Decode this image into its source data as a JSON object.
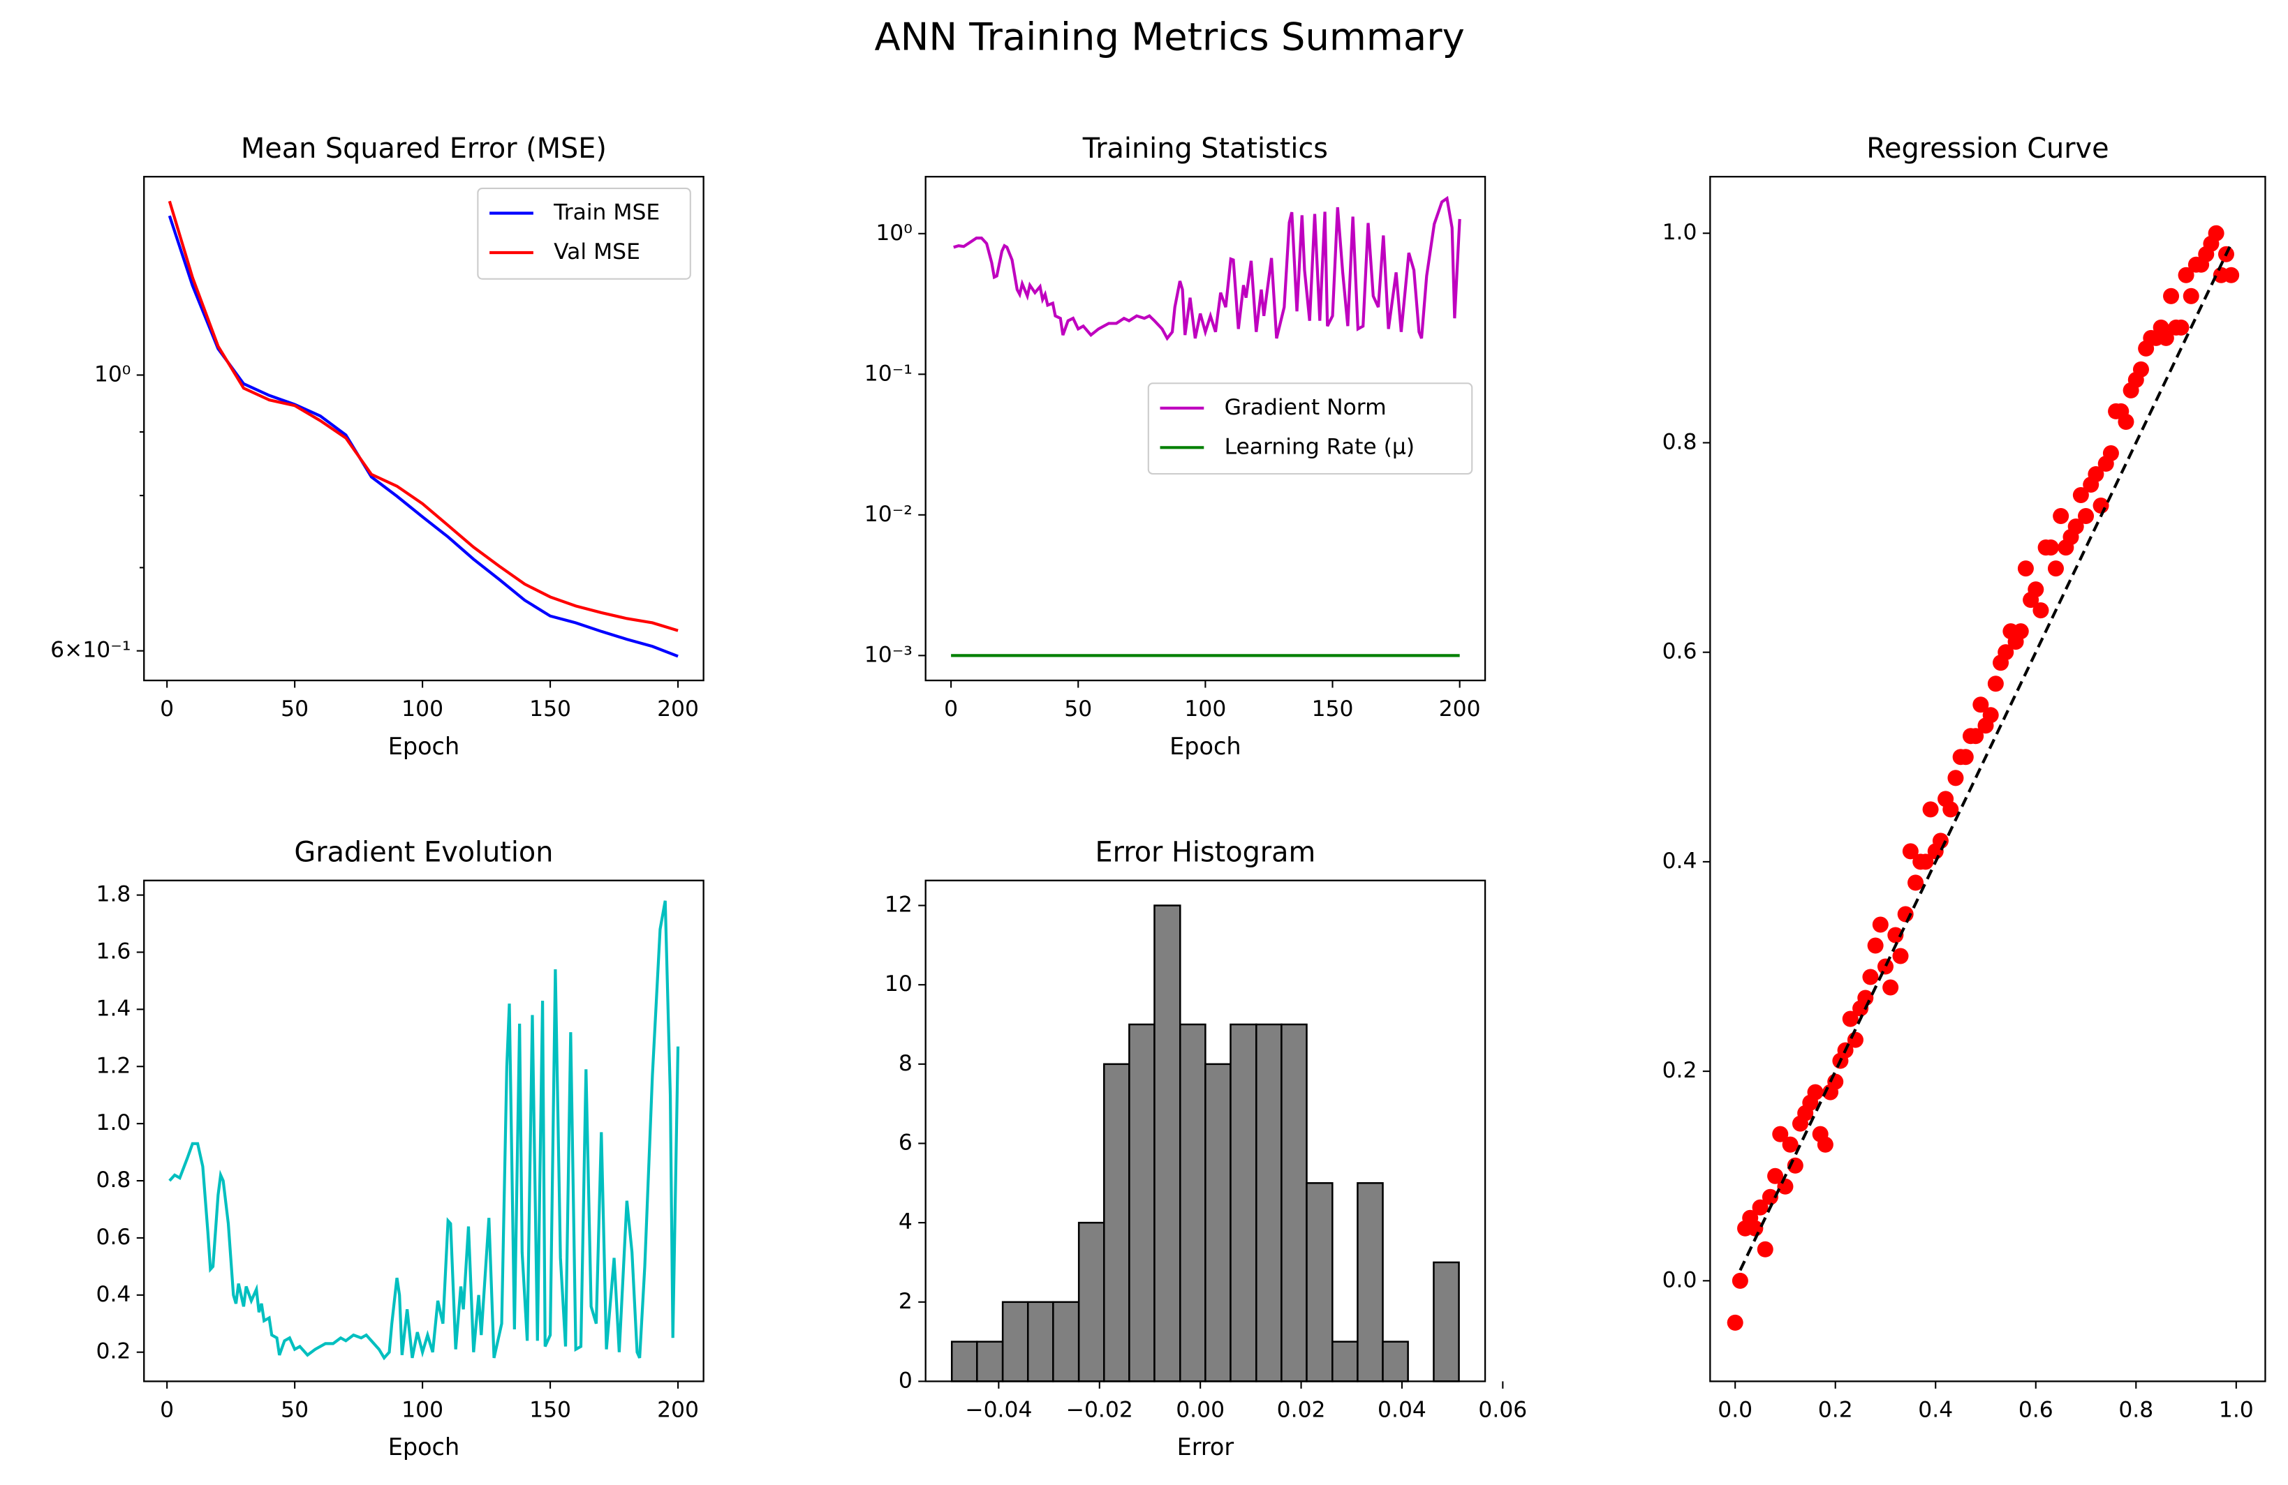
{
  "title": "ANN Training Metrics Summary",
  "chart_data": [
    {
      "type": "line",
      "title": "Mean Squared Error (MSE)",
      "xlabel": "Epoch",
      "yscale": "log",
      "xlim": [
        -9,
        210
      ],
      "xticks": [
        0,
        50,
        100,
        150,
        200
      ],
      "ylim": [
        0.568,
        1.444
      ],
      "yticks": [
        {
          "value": 0.6,
          "label": "6×10⁻¹"
        },
        {
          "value": 1,
          "label": "10⁰"
        }
      ],
      "yminorticks": [
        0.7,
        0.8,
        0.9
      ],
      "legend": "upper right",
      "series": [
        {
          "name": "Train MSE",
          "color": "#0000ff",
          "x": [
            1,
            10,
            20,
            30,
            40,
            50,
            60,
            70,
            80,
            90,
            100,
            110,
            120,
            130,
            140,
            150,
            160,
            170,
            180,
            190,
            200
          ],
          "values": [
            1.343,
            1.18,
            1.05,
            0.984,
            0.963,
            0.947,
            0.927,
            0.895,
            0.828,
            0.799,
            0.769,
            0.741,
            0.711,
            0.685,
            0.659,
            0.64,
            0.632,
            0.622,
            0.613,
            0.605,
            0.594
          ]
        },
        {
          "name": "Val MSE",
          "color": "#ff0000",
          "x": [
            1,
            10,
            20,
            30,
            40,
            50,
            60,
            70,
            80,
            90,
            100,
            110,
            120,
            130,
            140,
            150,
            160,
            170,
            180,
            190,
            200
          ],
          "values": [
            1.38,
            1.198,
            1.055,
            0.976,
            0.955,
            0.945,
            0.919,
            0.89,
            0.832,
            0.814,
            0.788,
            0.757,
            0.727,
            0.702,
            0.679,
            0.663,
            0.652,
            0.644,
            0.637,
            0.632,
            0.623
          ]
        }
      ]
    },
    {
      "type": "line",
      "title": "Training Statistics",
      "xlabel": "Epoch",
      "yscale": "log",
      "xlim": [
        -10,
        210
      ],
      "xticks": [
        0,
        50,
        100,
        150,
        200
      ],
      "ylim": [
        0.000665,
        2.54
      ],
      "yticks": [
        {
          "value": 0.001,
          "label": "10⁻³"
        },
        {
          "value": 0.01,
          "label": "10⁻²"
        },
        {
          "value": 0.1,
          "label": "10⁻¹"
        },
        {
          "value": 1,
          "label": "10⁰"
        }
      ],
      "legend": "center right",
      "series": [
        {
          "name": "Gradient Norm",
          "color": "#bf00bf",
          "x": [
            1,
            3,
            5,
            8,
            10,
            12,
            14,
            16,
            17,
            18,
            20,
            21,
            22,
            24,
            26,
            27,
            28,
            30,
            31,
            33,
            35,
            36,
            37,
            38,
            40,
            41,
            43,
            44,
            46,
            48,
            50,
            52,
            55,
            58,
            62,
            65,
            68,
            70,
            73,
            76,
            78,
            80,
            83,
            85,
            87,
            88,
            90,
            91,
            92,
            94,
            96,
            98,
            100,
            102,
            104,
            106,
            108,
            110,
            111,
            113,
            115,
            116,
            118,
            120,
            122,
            123,
            126,
            128,
            131,
            133,
            134,
            136,
            138,
            139,
            141,
            143,
            145,
            147,
            148,
            150,
            152,
            154,
            156,
            158,
            160,
            162,
            164,
            166,
            168,
            170,
            172,
            175,
            177,
            180,
            182,
            184,
            185,
            187,
            190,
            193,
            195,
            197,
            198,
            200
          ],
          "values": [
            0.8,
            0.82,
            0.81,
            0.88,
            0.93,
            0.93,
            0.85,
            0.62,
            0.49,
            0.5,
            0.75,
            0.82,
            0.8,
            0.65,
            0.4,
            0.37,
            0.44,
            0.36,
            0.43,
            0.38,
            0.42,
            0.34,
            0.37,
            0.31,
            0.32,
            0.26,
            0.25,
            0.19,
            0.24,
            0.25,
            0.21,
            0.22,
            0.19,
            0.21,
            0.23,
            0.23,
            0.25,
            0.24,
            0.26,
            0.25,
            0.26,
            0.24,
            0.21,
            0.18,
            0.2,
            0.3,
            0.46,
            0.4,
            0.19,
            0.35,
            0.18,
            0.27,
            0.2,
            0.26,
            0.2,
            0.38,
            0.3,
            0.66,
            0.65,
            0.21,
            0.43,
            0.35,
            0.64,
            0.2,
            0.4,
            0.26,
            0.67,
            0.18,
            0.3,
            1.2,
            1.42,
            0.28,
            1.35,
            0.55,
            0.24,
            1.38,
            0.24,
            1.43,
            0.22,
            0.26,
            1.54,
            0.53,
            0.22,
            1.32,
            0.21,
            0.22,
            1.19,
            0.36,
            0.3,
            0.97,
            0.21,
            0.53,
            0.2,
            0.73,
            0.55,
            0.2,
            0.18,
            0.5,
            1.17,
            1.68,
            1.78,
            1.1,
            0.25,
            1.27
          ]
        },
        {
          "name": "Learning Rate (μ)",
          "color": "#008000",
          "x": [
            0,
            200
          ],
          "values": [
            0.001,
            0.001
          ]
        }
      ]
    },
    {
      "type": "scatter",
      "title": "Regression Curve",
      "xlim": [
        -0.05,
        1.058
      ],
      "xticks": [
        {
          "value": 0,
          "label": "0.0"
        },
        0.2,
        0.4,
        0.6,
        0.8,
        {
          "value": 1,
          "label": "1.0"
        }
      ],
      "ylim": [
        -0.096,
        1.054
      ],
      "yticks": [
        {
          "value": 0,
          "label": "0.0"
        },
        0.2,
        0.4,
        0.6,
        0.8,
        {
          "value": 1,
          "label": "1.0"
        }
      ],
      "color": "#ff0000",
      "x": [
        0,
        0.01,
        0.02,
        0.03,
        0.04,
        0.05,
        0.06,
        0.07,
        0.08,
        0.09,
        0.1,
        0.11,
        0.12,
        0.13,
        0.14,
        0.15,
        0.16,
        0.17,
        0.18,
        0.19,
        0.2,
        0.21,
        0.22,
        0.23,
        0.24,
        0.25,
        0.26,
        0.27,
        0.28,
        0.29,
        0.3,
        0.31,
        0.32,
        0.33,
        0.34,
        0.35,
        0.36,
        0.37,
        0.38,
        0.39,
        0.4,
        0.41,
        0.42,
        0.43,
        0.44,
        0.45,
        0.46,
        0.47,
        0.48,
        0.49,
        0.5,
        0.51,
        0.52,
        0.53,
        0.54,
        0.55,
        0.56,
        0.57,
        0.58,
        0.59,
        0.6,
        0.61,
        0.62,
        0.63,
        0.64,
        0.65,
        0.66,
        0.67,
        0.68,
        0.69,
        0.7,
        0.71,
        0.72,
        0.73,
        0.74,
        0.75,
        0.76,
        0.77,
        0.78,
        0.79,
        0.8,
        0.81,
        0.82,
        0.83,
        0.84,
        0.85,
        0.86,
        0.87,
        0.88,
        0.89,
        0.9,
        0.91,
        0.92,
        0.93,
        0.94,
        0.95,
        0.96,
        0.97,
        0.98,
        0.99
      ],
      "values": [
        -0.04,
        0,
        0.05,
        0.06,
        0.05,
        0.07,
        0.03,
        0.08,
        0.1,
        0.14,
        0.09,
        0.13,
        0.11,
        0.15,
        0.16,
        0.17,
        0.18,
        0.14,
        0.13,
        0.18,
        0.19,
        0.21,
        0.22,
        0.25,
        0.23,
        0.26,
        0.27,
        0.29,
        0.32,
        0.34,
        0.3,
        0.28,
        0.33,
        0.31,
        0.35,
        0.41,
        0.38,
        0.4,
        0.4,
        0.45,
        0.41,
        0.42,
        0.46,
        0.45,
        0.48,
        0.5,
        0.5,
        0.52,
        0.52,
        0.55,
        0.53,
        0.54,
        0.57,
        0.59,
        0.6,
        0.62,
        0.61,
        0.62,
        0.68,
        0.65,
        0.66,
        0.64,
        0.7,
        0.7,
        0.68,
        0.73,
        0.7,
        0.71,
        0.72,
        0.75,
        0.73,
        0.76,
        0.77,
        0.74,
        0.78,
        0.79,
        0.83,
        0.83,
        0.82,
        0.85,
        0.86,
        0.87,
        0.89,
        0.9,
        0.9,
        0.91,
        0.9,
        0.94,
        0.91,
        0.91,
        0.96,
        0.94,
        0.97,
        0.97,
        0.98,
        0.99,
        1,
        0.96,
        0.98,
        0.96
      ],
      "fit": {
        "color": "#000000",
        "x": [
          0.01,
          0.99
        ],
        "values": [
          0.01,
          0.99
        ]
      }
    },
    {
      "type": "line",
      "title": "Gradient Evolution",
      "xlabel": "Epoch",
      "xlim": [
        -9,
        210
      ],
      "xticks": [
        0,
        50,
        100,
        150,
        200
      ],
      "ylim": [
        0.098,
        1.851
      ],
      "yticks": [
        0.2,
        0.4,
        0.6,
        0.8,
        {
          "value": 1,
          "label": "1.0"
        },
        1.2,
        1.4,
        1.6,
        1.8
      ],
      "series": [
        {
          "color": "#00bfbf",
          "x": [
            1,
            3,
            5,
            8,
            10,
            12,
            14,
            16,
            17,
            18,
            20,
            21,
            22,
            24,
            26,
            27,
            28,
            30,
            31,
            33,
            35,
            36,
            37,
            38,
            40,
            41,
            43,
            44,
            46,
            48,
            50,
            52,
            55,
            58,
            62,
            65,
            68,
            70,
            73,
            76,
            78,
            80,
            83,
            85,
            87,
            88,
            90,
            91,
            92,
            94,
            96,
            98,
            100,
            102,
            104,
            106,
            108,
            110,
            111,
            113,
            115,
            116,
            118,
            120,
            122,
            123,
            126,
            128,
            131,
            133,
            134,
            136,
            138,
            139,
            141,
            143,
            145,
            147,
            148,
            150,
            152,
            154,
            156,
            158,
            160,
            162,
            164,
            166,
            168,
            170,
            172,
            175,
            177,
            180,
            182,
            184,
            185,
            187,
            190,
            193,
            195,
            197,
            198,
            200
          ],
          "values": [
            0.8,
            0.82,
            0.81,
            0.88,
            0.93,
            0.93,
            0.85,
            0.62,
            0.49,
            0.5,
            0.75,
            0.82,
            0.8,
            0.65,
            0.4,
            0.37,
            0.44,
            0.36,
            0.43,
            0.38,
            0.42,
            0.34,
            0.37,
            0.31,
            0.32,
            0.26,
            0.25,
            0.19,
            0.24,
            0.25,
            0.21,
            0.22,
            0.19,
            0.21,
            0.23,
            0.23,
            0.25,
            0.24,
            0.26,
            0.25,
            0.26,
            0.24,
            0.21,
            0.18,
            0.2,
            0.3,
            0.46,
            0.4,
            0.19,
            0.35,
            0.18,
            0.27,
            0.2,
            0.26,
            0.2,
            0.38,
            0.3,
            0.66,
            0.65,
            0.21,
            0.43,
            0.35,
            0.64,
            0.2,
            0.4,
            0.26,
            0.67,
            0.18,
            0.3,
            1.2,
            1.42,
            0.28,
            1.35,
            0.55,
            0.24,
            1.38,
            0.24,
            1.43,
            0.22,
            0.26,
            1.54,
            0.53,
            0.22,
            1.32,
            0.21,
            0.22,
            1.19,
            0.36,
            0.3,
            0.97,
            0.21,
            0.53,
            0.2,
            0.73,
            0.55,
            0.2,
            0.18,
            0.5,
            1.17,
            1.68,
            1.78,
            1.1,
            0.25,
            1.27
          ]
        }
      ]
    },
    {
      "type": "histogram",
      "title": "Error Histogram",
      "xlabel": "Error",
      "color": "#808080",
      "xlim": [
        -0.0545,
        0.0565
      ],
      "xticks": [
        {
          "value": -0.04,
          "label": "−0.04"
        },
        {
          "value": -0.02,
          "label": "−0.02"
        },
        {
          "value": 0,
          "label": "0.00"
        },
        0.02,
        0.04,
        0.06
      ],
      "ylim": [
        0,
        12.63
      ],
      "yticks": [
        0,
        2,
        4,
        6,
        8,
        10,
        12
      ],
      "bins": [
        -0.0493,
        -0.0443,
        -0.0392,
        -0.0342,
        -0.0292,
        -0.0241,
        -0.0191,
        -0.0141,
        -0.0091,
        -0.004,
        0.001,
        0.006,
        0.0111,
        0.0161,
        0.0211,
        0.0262,
        0.0312,
        0.0362,
        0.0412,
        0.0463,
        0.0513
      ],
      "values": [
        1,
        1,
        2,
        2,
        2,
        4,
        8,
        9,
        12,
        9,
        8,
        9,
        9,
        9,
        5,
        1,
        5,
        1,
        0,
        3
      ]
    }
  ]
}
